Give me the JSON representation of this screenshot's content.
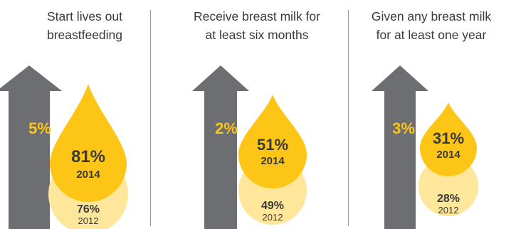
{
  "chart_data": {
    "type": "infographic",
    "panels": [
      {
        "title_lines": [
          "Start lives out",
          "breastfeeding"
        ],
        "increase": "5%",
        "current": {
          "value": 81,
          "label": "81%",
          "year": "2014"
        },
        "previous": {
          "value": 76,
          "label": "76%",
          "year": "2012"
        }
      },
      {
        "title_lines": [
          "Receive breast milk for",
          "at least six months"
        ],
        "increase": "2%",
        "current": {
          "value": 51,
          "label": "51%",
          "year": "2014"
        },
        "previous": {
          "value": 49,
          "label": "49%",
          "year": "2012"
        }
      },
      {
        "title_lines": [
          "Given any breast milk",
          "for at least one year"
        ],
        "increase": "3%",
        "current": {
          "value": 31,
          "label": "31%",
          "year": "2014"
        },
        "previous": {
          "value": 28,
          "label": "28%",
          "year": "2012"
        }
      }
    ]
  },
  "colors": {
    "arrow": "#6d6e71",
    "drop_current": "#fdc515",
    "drop_previous": "#fee69a",
    "increase_text": "#fdc515",
    "value_text": "#3a3a3a",
    "title_text": "#3a3a3a",
    "divider": "#9a9a9a"
  }
}
